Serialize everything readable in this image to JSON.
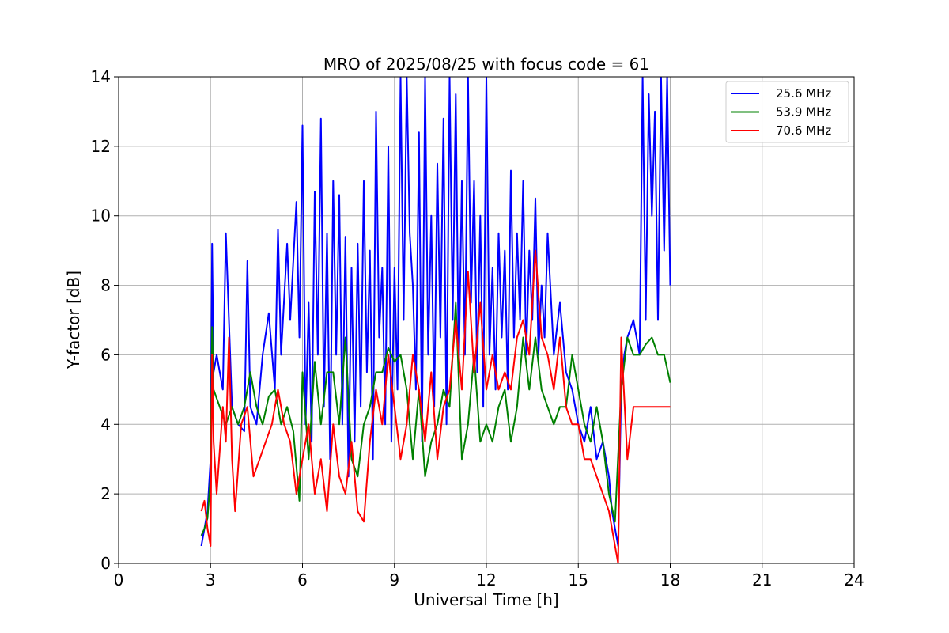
{
  "chart_data": {
    "type": "line",
    "title": "MRO of 2025/08/25 with focus code = 61",
    "xlabel": "Universal Time [h]",
    "ylabel": "Y-factor [dB]",
    "xlim": [
      0,
      24
    ],
    "ylim": [
      0,
      14
    ],
    "xticks": [
      0,
      3,
      6,
      9,
      12,
      15,
      18,
      21,
      24
    ],
    "yticks": [
      0,
      2,
      4,
      6,
      8,
      10,
      12,
      14
    ],
    "grid": true,
    "legend_position": "top-right",
    "series": [
      {
        "name": "25.6 MHz",
        "color": "#0000ff",
        "x": [
          2.7,
          2.8,
          2.9,
          3.0,
          3.05,
          3.1,
          3.2,
          3.4,
          3.5,
          3.6,
          3.7,
          3.9,
          4.1,
          4.2,
          4.3,
          4.5,
          4.7,
          4.9,
          5.1,
          5.2,
          5.3,
          5.5,
          5.6,
          5.8,
          5.9,
          6.0,
          6.1,
          6.2,
          6.3,
          6.4,
          6.5,
          6.6,
          6.7,
          6.8,
          6.9,
          7.0,
          7.1,
          7.2,
          7.3,
          7.4,
          7.5,
          7.6,
          7.7,
          7.8,
          7.9,
          8.0,
          8.1,
          8.2,
          8.3,
          8.4,
          8.5,
          8.6,
          8.7,
          8.8,
          8.9,
          9.0,
          9.1,
          9.2,
          9.3,
          9.4,
          9.5,
          9.6,
          9.7,
          9.8,
          9.9,
          10.0,
          10.1,
          10.2,
          10.3,
          10.4,
          10.5,
          10.6,
          10.7,
          10.8,
          10.9,
          11.0,
          11.1,
          11.2,
          11.3,
          11.4,
          11.5,
          11.6,
          11.7,
          11.8,
          11.9,
          12.0,
          12.1,
          12.2,
          12.3,
          12.4,
          12.5,
          12.6,
          12.7,
          12.8,
          12.9,
          13.0,
          13.1,
          13.2,
          13.3,
          13.4,
          13.5,
          13.6,
          13.7,
          13.8,
          13.9,
          14.0,
          14.2,
          14.4,
          14.6,
          14.8,
          15.0,
          15.2,
          15.4,
          15.6,
          15.8,
          16.0,
          16.1,
          16.2,
          16.3,
          16.4,
          16.5,
          16.6,
          16.8,
          17.0,
          17.1,
          17.2,
          17.3,
          17.4,
          17.5,
          17.6,
          17.7,
          17.8,
          17.9,
          18.0
        ],
        "y": [
          0.5,
          1.0,
          1.5,
          3.0,
          9.2,
          5.5,
          6.0,
          5.0,
          9.5,
          7.0,
          4.5,
          4.0,
          3.8,
          8.7,
          4.5,
          4.0,
          6.0,
          7.2,
          5.0,
          9.6,
          6.0,
          9.2,
          7.0,
          10.4,
          6.5,
          12.6,
          4.0,
          7.5,
          3.5,
          10.7,
          6.0,
          12.8,
          4.5,
          9.5,
          3.0,
          11.0,
          6.0,
          10.6,
          4.0,
          9.4,
          2.5,
          8.5,
          3.5,
          9.2,
          4.5,
          11.0,
          5.5,
          9.0,
          3.0,
          13.0,
          6.5,
          8.5,
          4.0,
          12.0,
          3.5,
          8.5,
          5.0,
          14.0,
          7.0,
          14.0,
          9.5,
          8.0,
          5.0,
          12.4,
          3.5,
          14.0,
          6.0,
          10.0,
          4.5,
          11.5,
          6.5,
          12.8,
          4.0,
          14.0,
          7.0,
          13.5,
          5.5,
          11.0,
          6.0,
          14.0,
          7.5,
          11.0,
          5.5,
          10.0,
          4.5,
          14.0,
          6.0,
          8.5,
          5.0,
          9.5,
          6.5,
          9.0,
          5.0,
          11.3,
          6.5,
          9.5,
          7.0,
          11.0,
          6.0,
          9.0,
          7.0,
          10.5,
          6.0,
          8.0,
          6.5,
          9.5,
          6.0,
          7.5,
          5.5,
          5.0,
          4.0,
          3.5,
          4.5,
          3.0,
          3.5,
          2.5,
          1.5,
          1.0,
          0.5,
          5.0,
          6.0,
          6.5,
          7.0,
          6.0,
          14.0,
          7.0,
          13.5,
          10.0,
          13.0,
          7.0,
          14.0,
          9.0,
          14.0,
          8.0
        ]
      },
      {
        "name": "53.9 MHz",
        "color": "#008000",
        "x": [
          2.7,
          2.8,
          2.9,
          3.0,
          3.05,
          3.1,
          3.3,
          3.5,
          3.7,
          3.9,
          4.1,
          4.3,
          4.5,
          4.7,
          4.9,
          5.1,
          5.3,
          5.5,
          5.7,
          5.9,
          6.0,
          6.2,
          6.4,
          6.6,
          6.8,
          7.0,
          7.2,
          7.4,
          7.6,
          7.8,
          8.0,
          8.2,
          8.4,
          8.6,
          8.8,
          9.0,
          9.2,
          9.4,
          9.6,
          9.8,
          10.0,
          10.2,
          10.4,
          10.6,
          10.8,
          11.0,
          11.2,
          11.4,
          11.6,
          11.8,
          12.0,
          12.2,
          12.4,
          12.6,
          12.8,
          13.0,
          13.2,
          13.4,
          13.6,
          13.8,
          14.0,
          14.2,
          14.4,
          14.6,
          14.8,
          15.0,
          15.2,
          15.4,
          15.6,
          15.8,
          16.0,
          16.2,
          16.4,
          16.6,
          16.8,
          17.0,
          17.2,
          17.4,
          17.6,
          17.8,
          18.0
        ],
        "y": [
          0.8,
          1.0,
          1.3,
          2.5,
          6.8,
          5.0,
          4.5,
          4.0,
          4.5,
          4.0,
          4.5,
          5.5,
          4.5,
          4.0,
          4.8,
          5.0,
          4.0,
          4.5,
          3.8,
          1.8,
          5.5,
          3.0,
          5.8,
          4.0,
          5.5,
          5.5,
          4.0,
          6.5,
          3.0,
          2.5,
          4.0,
          4.5,
          5.5,
          5.5,
          6.2,
          5.8,
          6.0,
          5.0,
          3.0,
          5.0,
          2.5,
          3.5,
          4.0,
          5.0,
          4.5,
          7.5,
          3.0,
          4.0,
          6.0,
          3.5,
          4.0,
          3.5,
          4.5,
          5.0,
          3.5,
          4.5,
          6.5,
          5.0,
          6.5,
          5.0,
          4.5,
          4.0,
          4.5,
          4.5,
          6.0,
          5.0,
          4.0,
          3.5,
          4.5,
          3.5,
          2.0,
          1.2,
          5.0,
          6.5,
          6.0,
          6.0,
          6.3,
          6.5,
          6.0,
          6.0,
          5.2
        ]
      },
      {
        "name": "70.6 MHz",
        "color": "#ff0000",
        "x": [
          2.7,
          2.8,
          2.9,
          3.0,
          3.05,
          3.1,
          3.2,
          3.4,
          3.5,
          3.6,
          3.7,
          3.8,
          4.0,
          4.2,
          4.4,
          4.6,
          4.8,
          5.0,
          5.2,
          5.4,
          5.6,
          5.8,
          6.0,
          6.2,
          6.4,
          6.6,
          6.8,
          7.0,
          7.2,
          7.4,
          7.6,
          7.8,
          8.0,
          8.2,
          8.4,
          8.6,
          8.8,
          9.0,
          9.2,
          9.4,
          9.6,
          9.8,
          10.0,
          10.2,
          10.4,
          10.6,
          10.8,
          11.0,
          11.2,
          11.4,
          11.6,
          11.8,
          12.0,
          12.2,
          12.4,
          12.6,
          12.8,
          13.0,
          13.2,
          13.4,
          13.6,
          13.8,
          14.0,
          14.2,
          14.4,
          14.6,
          14.8,
          15.0,
          15.2,
          15.4,
          15.6,
          15.8,
          16.0,
          16.2,
          16.3,
          16.4,
          16.6,
          16.8,
          17.0,
          17.2,
          17.4,
          17.6,
          17.8,
          18.0
        ],
        "y": [
          1.5,
          1.8,
          1.0,
          0.5,
          6.0,
          3.5,
          2.0,
          4.5,
          3.5,
          6.5,
          3.0,
          1.5,
          4.0,
          4.5,
          2.5,
          3.0,
          3.5,
          4.0,
          5.0,
          4.0,
          3.5,
          2.0,
          3.0,
          4.0,
          2.0,
          3.0,
          1.5,
          4.0,
          2.5,
          2.0,
          3.5,
          1.5,
          1.2,
          3.5,
          5.0,
          4.0,
          6.0,
          4.5,
          3.0,
          4.0,
          6.0,
          5.0,
          3.5,
          5.5,
          3.0,
          4.5,
          5.0,
          7.0,
          5.0,
          8.4,
          5.5,
          7.5,
          5.0,
          6.0,
          5.0,
          5.5,
          5.0,
          6.5,
          7.0,
          6.0,
          9.0,
          6.5,
          6.0,
          5.0,
          6.5,
          4.5,
          4.0,
          4.0,
          3.0,
          3.0,
          2.5,
          2.0,
          1.5,
          0.5,
          0.0,
          6.5,
          3.0,
          4.5,
          4.5,
          4.5,
          4.5,
          4.5,
          4.5,
          4.5
        ]
      }
    ]
  }
}
